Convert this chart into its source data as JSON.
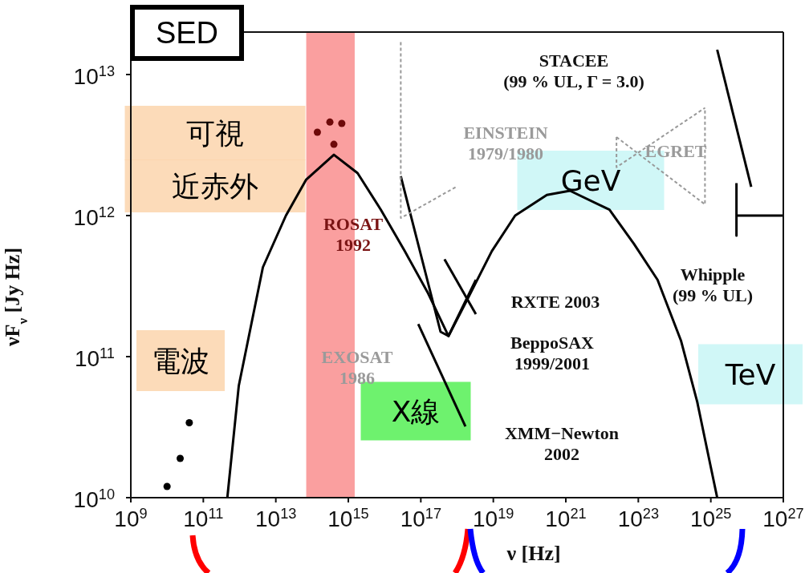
{
  "chart_data": {
    "type": "line",
    "title": "SED",
    "xlabel": "ν [Hz]",
    "ylabel": "νF$_{ν}$ [Jy Hz]",
    "log": "xy",
    "xlim": [
      1000000000.0,
      1e+27
    ],
    "ylim": [
      10000000000.0,
      20000000000000.0
    ],
    "xticks": [
      {
        "value": 1000000000.0,
        "label": "10$^{9}$"
      },
      {
        "value": 100000000000.0,
        "label": "10$^{11}$"
      },
      {
        "value": 10000000000000.0,
        "label": "10$^{13}$"
      },
      {
        "value": 1000000000000000.0,
        "label": "10$^{15}$"
      },
      {
        "value": 1e+17,
        "label": "10$^{17}$"
      },
      {
        "value": 1e+19,
        "label": "10$^{19}$"
      },
      {
        "value": 1e+21,
        "label": "10$^{21}$"
      },
      {
        "value": 1e+23,
        "label": "10$^{23}$"
      },
      {
        "value": 1e+25,
        "label": "10$^{25}$"
      },
      {
        "value": 1e+27,
        "label": "10$^{27}$"
      }
    ],
    "yticks": [
      {
        "value": 10000000000.0,
        "label": "10$^{10}$"
      },
      {
        "value": 100000000000.0,
        "label": "10$^{11}$"
      },
      {
        "value": 1000000000000.0,
        "label": "10$^{12}$"
      },
      {
        "value": 10000000000000.0,
        "label": "10$^{13}$"
      }
    ],
    "bands": [
      {
        "axis": "x",
        "from": 69000000000000.0,
        "to": 1500000000000000.0,
        "color": "#f87f7f"
      }
    ],
    "series": [
      {
        "color": "#000000",
        "line_style": "solid",
        "x": [
          460000000000.0,
          950000000000.0,
          4400000000000.0,
          19000000000000.0,
          69000000000000.0,
          400000000000000.0,
          1800000000000000.0,
          7900000000000000.0,
          3.6e+16,
          1.6e+17,
          5.8e+17,
          2e+18,
          9.1e+18,
          4e+19,
          3e+20,
          1.3e+21,
          1.6e+22,
          7.6e+22,
          3.4e+23,
          1.5e+24,
          4.2e+24,
          8.9e+24,
          1.5e+25
        ],
        "values": [
          10000000000.0,
          62000000000.0,
          430000000000.0,
          1000000000000.0,
          1800000000000.0,
          2700000000000.0,
          2000000000000.0,
          1100000000000.0,
          560000000000.0,
          280000000000.0,
          140000000000.0,
          260000000000.0,
          560000000000.0,
          1000000000000.0,
          1400000000000.0,
          1500000000000.0,
          1100000000000.0,
          630000000000.0,
          350000000000.0,
          130000000000.0,
          48000000000.0,
          19000000000.0,
          10000000000.0
        ]
      },
      {
        "type": "scatter",
        "color": "#000000",
        "marker": "circle",
        "x": [
          10000000000.0,
          23000000000.0,
          41000000000.0
        ],
        "values": [
          12000000000.0,
          19000000000.0,
          34000000000.0
        ]
      },
      {
        "type": "scatter",
        "color": "#6e0a0a",
        "marker": "circle",
        "x": [
          140000000000000.0,
          310000000000000.0,
          660000000000000.0,
          400000000000000.0
        ],
        "values": [
          3900000000000.0,
          4600000000000.0,
          4500000000000.0,
          3200000000000.0
        ]
      },
      {
        "color": "#000000",
        "line_style": "solid",
        "x": [
          2.8e+16,
          3.5e+17,
          5.8e+17,
          3.3e+18
        ],
        "values": [
          1900000000000.0,
          150000000000.0,
          140000000000.0,
          350000000000.0
        ]
      },
      {
        "color": "#000000",
        "line_style": "solid",
        "x": [
          4.5e+17,
          3.3e+18
        ],
        "values": [
          490000000000.0,
          200000000000.0
        ]
      },
      {
        "color": "#000000",
        "line_style": "solid",
        "x": [
          8.5e+16,
          1.7e+18
        ],
        "values": [
          170000000000.0,
          32000000000.0
        ]
      },
      {
        "color": "#999999",
        "line_style": "dotted",
        "x": [
          2.8e+16,
          2.8e+16,
          9.5e+17
        ],
        "values": [
          17000000000000.0,
          960000000000.0,
          1600000000000.0
        ]
      },
      {
        "color": "#999999",
        "line_style": "dotted",
        "x": [
          2.5e+22,
          6.9e+24,
          6.9e+24
        ],
        "values": [
          3600000000000.0,
          1200000000000.0,
          5800000000000.0
        ]
      },
      {
        "color": "#999999",
        "line_style": "dotted",
        "x": [
          2.5e+22,
          2.5e+22,
          6.9e+24
        ],
        "values": [
          3600000000000.0,
          2200000000000.0,
          5800000000000.0
        ]
      },
      {
        "color": "#000000",
        "line_style": "solid",
        "x": [
          1.5e+25,
          1.3e+26
        ],
        "values": [
          15000000000000.0,
          1600000000000.0
        ]
      },
      {
        "color": "#000000",
        "line_style": "solid",
        "x": [
          5.1e+25,
          5.1e+25,
          5.1e+25,
          1e+27
        ],
        "values": [
          1700000000000.0,
          720000000000.0,
          1000000000000.0,
          1000000000000.0
        ]
      }
    ],
    "annotations": [
      "可視",
      "近赤外",
      "電波",
      "X線",
      "GeV",
      "TeV",
      "ROSAT\n1992",
      "EINSTEIN\n1979/1980",
      "EXOSAT\n1986",
      "STACEE\n(99 % UL, Γ = 3.0)",
      "EGRET",
      "Whipple\n(99 % UL)",
      "RXTE 2003",
      "BeppoSAX\n1999/2001",
      "XMM−Newton\n2002"
    ]
  }
}
